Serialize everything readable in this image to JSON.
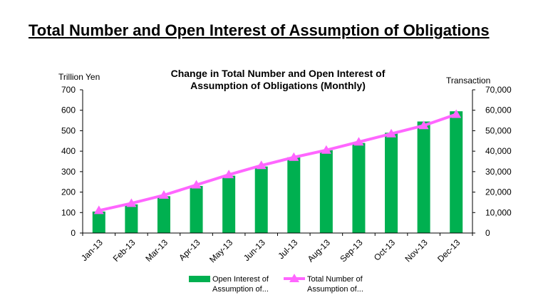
{
  "page": {
    "title": "Total Number and Open Interest of Assumption of Obligations"
  },
  "chart_data": {
    "type": "bar",
    "title_lines": [
      "Change in Total Number and Open Interest of",
      "Assumption of Obligations (Monthly)"
    ],
    "categories": [
      "Jan-13",
      "Feb-13",
      "Mar-13",
      "Apr-13",
      "May-13",
      "Jun-13",
      "Jul-13",
      "Aug-13",
      "Sep-13",
      "Oct-13",
      "Nov-13",
      "Dec-13"
    ],
    "y_left": {
      "label": "Trillion Yen",
      "range": [
        0,
        700
      ],
      "ticks": [
        "0",
        "100",
        "200",
        "300",
        "400",
        "500",
        "600",
        "700"
      ]
    },
    "y_right": {
      "label": "Transaction",
      "range": [
        0,
        70000
      ],
      "ticks": [
        "0",
        "10,000",
        "20,000",
        "30,000",
        "40,000",
        "50,000",
        "60,000",
        "70,000"
      ]
    },
    "grid": false,
    "legend_position": "bottom",
    "series": [
      {
        "name": "Open Interest of Assumption of...",
        "legend_lines": [
          "Open Interest of",
          "Assumption of..."
        ],
        "type": "bar",
        "axis": "left",
        "color": "#00b050",
        "values": [
          105,
          140,
          180,
          230,
          280,
          325,
          370,
          405,
          440,
          490,
          545,
          595
        ]
      },
      {
        "name": "Total Number of Assumption of...",
        "legend_lines": [
          "Total Number of",
          "Assumption of..."
        ],
        "type": "line",
        "axis": "right",
        "color": "#ff66ff",
        "marker": "triangle",
        "values": [
          11000,
          14500,
          18500,
          23500,
          28500,
          33000,
          37000,
          40500,
          44500,
          48500,
          52500,
          58000
        ]
      }
    ]
  }
}
